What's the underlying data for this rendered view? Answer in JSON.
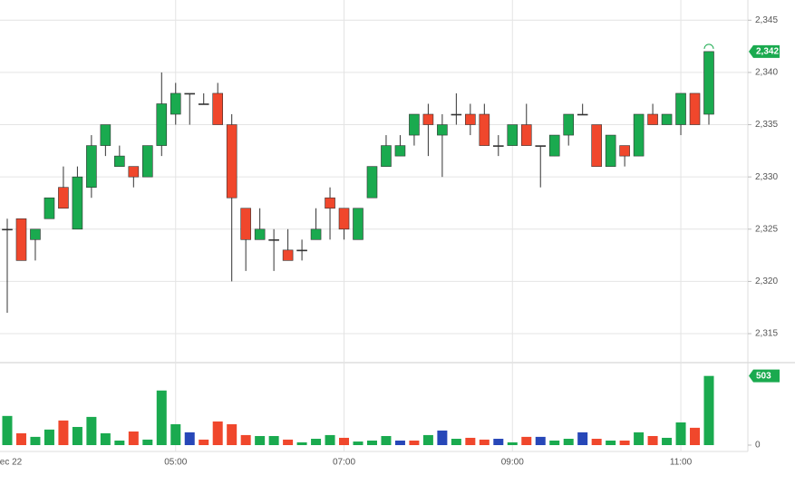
{
  "chart_data": [
    {
      "type": "candlestick",
      "categories": [
        "ec 22",
        null,
        null,
        null,
        null,
        null,
        null,
        null,
        null,
        null,
        null,
        null,
        "05:00",
        null,
        null,
        null,
        null,
        null,
        null,
        null,
        null,
        null,
        null,
        null,
        "07:00",
        null,
        null,
        null,
        null,
        null,
        null,
        null,
        null,
        null,
        null,
        null,
        "09:00",
        null,
        null,
        null,
        null,
        null,
        null,
        null,
        null,
        null,
        null,
        null,
        "11:00",
        null,
        null
      ],
      "open": [
        2325,
        2326,
        2324,
        2326,
        2329,
        2325,
        2329,
        2333,
        2331,
        2331,
        2330,
        2333,
        2336,
        2338,
        2337,
        2338,
        2335,
        2327,
        2324,
        2324,
        2323,
        2323,
        2324,
        2328,
        2327,
        2324,
        2328,
        2331,
        2332,
        2334,
        2336,
        2334,
        2336,
        2336,
        2336,
        2333,
        2333,
        2335,
        2333,
        2332,
        2334,
        2336,
        2335,
        2331,
        2333,
        2332,
        2336,
        2335,
        2335,
        2338,
        2336
      ],
      "high": [
        2326,
        2326,
        2325,
        2328,
        2331,
        2331,
        2334,
        2335,
        2333,
        2331,
        2333,
        2340,
        2339,
        2338,
        2338,
        2339,
        2336,
        2327,
        2327,
        2325,
        2325,
        2324,
        2327,
        2329,
        2327,
        2327,
        2331,
        2334,
        2334,
        2336,
        2337,
        2336,
        2338,
        2337,
        2337,
        2334,
        2335,
        2337,
        2333,
        2334,
        2336,
        2337,
        2335,
        2334,
        2333,
        2336,
        2337,
        2336,
        2338,
        2338,
        2342
      ],
      "low": [
        2317,
        2322,
        2322,
        2326,
        2327,
        2325,
        2328,
        2332,
        2331,
        2329,
        2330,
        2332,
        2335,
        2335,
        2337,
        2335,
        2320,
        2321,
        2324,
        2321,
        2322,
        2322,
        2324,
        2324,
        2324,
        2324,
        2328,
        2331,
        2332,
        2333,
        2332,
        2330,
        2335,
        2334,
        2333,
        2332,
        2333,
        2333,
        2329,
        2332,
        2333,
        2336,
        2331,
        2331,
        2331,
        2332,
        2335,
        2335,
        2334,
        2335,
        2335
      ],
      "close": [
        2325,
        2322,
        2325,
        2328,
        2327,
        2330,
        2333,
        2335,
        2332,
        2330,
        2333,
        2337,
        2338,
        2338,
        2337,
        2335,
        2328,
        2324,
        2325,
        2324,
        2322,
        2323,
        2325,
        2327,
        2325,
        2327,
        2331,
        2333,
        2333,
        2336,
        2335,
        2335,
        2336,
        2335,
        2333,
        2333,
        2335,
        2333,
        2333,
        2334,
        2336,
        2336,
        2331,
        2334,
        2332,
        2336,
        2335,
        2336,
        2338,
        2335,
        2342
      ],
      "up_color": "#1aaa4f",
      "down_color": "#f0472c",
      "flat_color": "#333333",
      "ylim": [
        2312.4,
        2346.5
      ],
      "yticks": [
        {
          "value": 2315,
          "label": "2,315"
        },
        {
          "value": 2320,
          "label": "2,320"
        },
        {
          "value": 2325,
          "label": "2,325"
        },
        {
          "value": 2330,
          "label": "2,330"
        },
        {
          "value": 2335,
          "label": "2,335"
        },
        {
          "value": 2340,
          "label": "2,340"
        },
        {
          "value": 2345,
          "label": "2,345"
        }
      ],
      "grid": true,
      "last_label": "2,342"
    },
    {
      "type": "bar",
      "values": [
        212,
        86,
        60,
        113,
        179,
        132,
        205,
        86,
        33,
        99,
        40,
        397,
        152,
        93,
        40,
        172,
        152,
        73,
        66,
        66,
        40,
        20,
        46,
        73,
        53,
        26,
        33,
        66,
        33,
        33,
        73,
        106,
        46,
        53,
        40,
        46,
        20,
        60,
        60,
        33,
        46,
        93,
        46,
        33,
        33,
        93,
        66,
        53,
        165,
        126,
        503
      ],
      "colors": [
        "#1aaa4f",
        "#f0472c",
        "#1aaa4f",
        "#1aaa4f",
        "#f0472c",
        "#1aaa4f",
        "#1aaa4f",
        "#1aaa4f",
        "#1aaa4f",
        "#f0472c",
        "#1aaa4f",
        "#1aaa4f",
        "#1aaa4f",
        "#2747b8",
        "#f0472c",
        "#f0472c",
        "#f0472c",
        "#f0472c",
        "#1aaa4f",
        "#1aaa4f",
        "#f0472c",
        "#1aaa4f",
        "#1aaa4f",
        "#1aaa4f",
        "#f0472c",
        "#1aaa4f",
        "#1aaa4f",
        "#1aaa4f",
        "#2747b8",
        "#f0472c",
        "#1aaa4f",
        "#2747b8",
        "#1aaa4f",
        "#f0472c",
        "#f0472c",
        "#2747b8",
        "#1aaa4f",
        "#f0472c",
        "#2747b8",
        "#1aaa4f",
        "#1aaa4f",
        "#2747b8",
        "#f0472c",
        "#1aaa4f",
        "#f0472c",
        "#1aaa4f",
        "#f0472c",
        "#1aaa4f",
        "#1aaa4f",
        "#f0472c",
        "#1aaa4f"
      ],
      "ylim": [
        0,
        580
      ],
      "yticks": [
        0
      ],
      "last_label": "503"
    }
  ]
}
